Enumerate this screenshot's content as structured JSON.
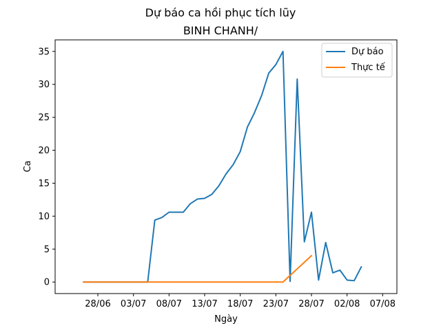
{
  "chart_data": {
    "type": "line",
    "title": "Dự báo ca hồi phục tích lũy",
    "subtitle": "BINH CHANH/",
    "xlabel": "Ngày",
    "ylabel": "Ca",
    "xlim": [
      "2021-06-22",
      "2021-08-09"
    ],
    "ylim": [
      -1.75,
      36.75
    ],
    "x_ticks": [
      {
        "date": "2021-06-28",
        "label": "28/06"
      },
      {
        "date": "2021-07-03",
        "label": "03/07"
      },
      {
        "date": "2021-07-08",
        "label": "08/07"
      },
      {
        "date": "2021-07-13",
        "label": "13/07"
      },
      {
        "date": "2021-07-18",
        "label": "18/07"
      },
      {
        "date": "2021-07-23",
        "label": "23/07"
      },
      {
        "date": "2021-07-28",
        "label": "28/07"
      },
      {
        "date": "2021-08-02",
        "label": "02/08"
      },
      {
        "date": "2021-08-07",
        "label": "07/08"
      }
    ],
    "y_ticks": [
      0,
      5,
      10,
      15,
      20,
      25,
      30,
      35
    ],
    "grid": false,
    "legend_position": "top-right",
    "series": [
      {
        "name": "Dự báo",
        "color": "#1f77b4",
        "x": [
          "2021-06-26",
          "2021-06-27",
          "2021-06-28",
          "2021-06-29",
          "2021-06-30",
          "2021-07-01",
          "2021-07-02",
          "2021-07-03",
          "2021-07-04",
          "2021-07-05",
          "2021-07-06",
          "2021-07-07",
          "2021-07-08",
          "2021-07-09",
          "2021-07-10",
          "2021-07-11",
          "2021-07-12",
          "2021-07-13",
          "2021-07-14",
          "2021-07-15",
          "2021-07-16",
          "2021-07-17",
          "2021-07-18",
          "2021-07-19",
          "2021-07-20",
          "2021-07-21",
          "2021-07-22",
          "2021-07-23",
          "2021-07-24",
          "2021-07-25",
          "2021-07-26",
          "2021-07-27",
          "2021-07-28",
          "2021-07-29",
          "2021-07-30",
          "2021-07-31",
          "2021-08-01",
          "2021-08-02",
          "2021-08-03",
          "2021-08-04",
          "2021-08-05"
        ],
        "values": [
          0,
          0,
          0,
          0,
          0,
          0,
          0,
          0,
          0,
          0,
          9.4,
          9.8,
          10.6,
          10.6,
          10.6,
          11.9,
          12.6,
          12.7,
          13.3,
          14.6,
          16.4,
          17.8,
          19.8,
          23.5,
          25.7,
          28.3,
          31.7,
          33.0,
          35.0,
          0.1,
          30.8,
          6.1,
          10.6,
          0.3,
          6.0,
          1.4,
          1.8,
          0.3,
          0.2,
          2.3,
          null
        ]
      },
      {
        "name": "Thực tế",
        "color": "#ff7f0e",
        "x": [
          "2021-06-26",
          "2021-06-27",
          "2021-06-28",
          "2021-06-29",
          "2021-06-30",
          "2021-07-01",
          "2021-07-02",
          "2021-07-03",
          "2021-07-04",
          "2021-07-05",
          "2021-07-06",
          "2021-07-07",
          "2021-07-08",
          "2021-07-09",
          "2021-07-10",
          "2021-07-11",
          "2021-07-12",
          "2021-07-13",
          "2021-07-14",
          "2021-07-15",
          "2021-07-16",
          "2021-07-17",
          "2021-07-18",
          "2021-07-19",
          "2021-07-20",
          "2021-07-21",
          "2021-07-22",
          "2021-07-23",
          "2021-07-24",
          "2021-07-25",
          "2021-07-26",
          "2021-07-27",
          "2021-07-28"
        ],
        "values": [
          0,
          0,
          0,
          0,
          0,
          0,
          0,
          0,
          0,
          0,
          0,
          0,
          0,
          0,
          0,
          0,
          0,
          0,
          0,
          0,
          0,
          0,
          0,
          0,
          0,
          0,
          0,
          0,
          0,
          1.0,
          2.0,
          3.0,
          4.0
        ]
      }
    ]
  }
}
